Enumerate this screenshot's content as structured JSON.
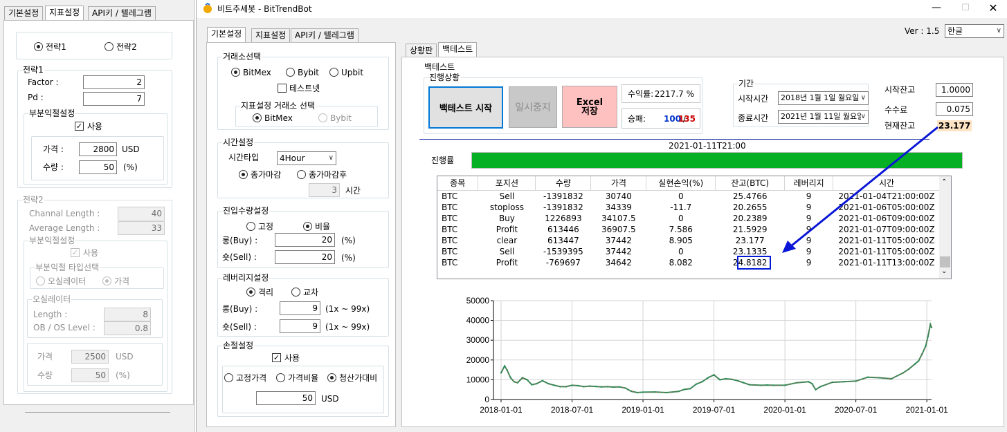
{
  "left_window": {
    "tabs": [
      "기본설정",
      "지표설정",
      "API키 / 텔레그램"
    ],
    "strategy_radios": [
      "전략1",
      "전략2"
    ],
    "strategy1": {
      "title": "전략1",
      "factor_label": "Factor :",
      "factor_value": "2",
      "pd_label": "Pd :",
      "pd_value": "7",
      "partial_title": "부분익절설정",
      "use_label": "사용",
      "price_label": "가격 :",
      "price_value": "2800",
      "price_unit": "USD",
      "qty_label": "수량 :",
      "qty_value": "50",
      "qty_unit": "(%)"
    },
    "strategy2": {
      "title": "전략2",
      "channal_label": "Channal Length :",
      "channal_value": "40",
      "average_label": "Average Length :",
      "average_value": "33",
      "partial_title": "부분익절설정",
      "use_label": "사용",
      "type_title": "부분익절 타입선택",
      "type_options": [
        "오실레이터",
        "가격"
      ],
      "osc_title": "오실레이터",
      "length_label": "Length :",
      "length_value": "8",
      "obos_label": "OB / OS Level :",
      "obos_value": "0.8",
      "price_label": "가격",
      "price_value": "2500",
      "price_unit": "USD",
      "qty_label": "수량",
      "qty_value": "50",
      "qty_unit": "(%)"
    }
  },
  "main_window": {
    "title": "비트추세봇 - BitTrendBot",
    "version_label": "Ver : 1.5",
    "language": "한글",
    "tabs": [
      "기본설정",
      "지표설정",
      "API키 / 텔레그램"
    ],
    "exchange": {
      "title": "거래소선택",
      "options": [
        "BitMex",
        "Bybit",
        "Upbit"
      ],
      "testnet_label": "테스트넷",
      "indicator_title": "지표설정 거래소 선택",
      "indicator_options": [
        "BitMex",
        "Bybit"
      ]
    },
    "time": {
      "title": "시간설정",
      "type_label": "시간타입",
      "type_value": "4Hour",
      "options": [
        "종가마감",
        "종가마감후"
      ],
      "hours_value": "3",
      "hours_unit": "시간"
    },
    "entry": {
      "title": "진입수량설정",
      "options": [
        "고정",
        "비율"
      ],
      "long_label": "롱(Buy) :",
      "long_value": "20",
      "long_unit": "(%)",
      "short_label": "숏(Sell) :",
      "short_value": "20",
      "short_unit": "(%)"
    },
    "leverage": {
      "title": "레버리지설정",
      "options": [
        "격리",
        "교차"
      ],
      "long_label": "롱(Buy) :",
      "long_value": "9",
      "long_range": "(1x ~ 99x)",
      "short_label": "숏(Sell) :",
      "short_value": "9",
      "short_range": "(1x ~ 99x)"
    },
    "stoploss": {
      "title": "손절설정",
      "use_label": "사용",
      "options": [
        "고정가격",
        "가격비율",
        "청산가대비"
      ],
      "value": "50",
      "unit": "USD"
    },
    "right_tabs": [
      "상황판",
      "백테스트"
    ],
    "backtest": {
      "title": "백테스트",
      "progress_title": "진행상황",
      "start_button": "백테스트 시작",
      "pause_button": "일시중지",
      "excel_button_line1": "Excel",
      "excel_button_line2": "저장",
      "profit_label": "수익률:",
      "profit_value": "2217.7 %",
      "winloss_label": "승패:",
      "wins": "100",
      "sep": "/",
      "losses": "135",
      "period_title": "기간",
      "start_label": "시작시간",
      "start_value": "2018년   1월   1일 월요일",
      "end_label": "종료시간",
      "end_value": "2021년   1월 11일 월요일",
      "start_balance_label": "시작잔고",
      "start_balance_value": "1.0000",
      "fee_label": "수수료",
      "fee_value": "0.075",
      "current_balance_label": "현재잔고",
      "current_balance_value": "23.177",
      "current_time": "2021-01-11T21:00",
      "progress_label": "진행률",
      "progress_fraction": 1.0,
      "table": {
        "headers": [
          "종목",
          "포지션",
          "수량",
          "가격",
          "실현손익(%)",
          "잔고(BTC)",
          "레버리지",
          "시간"
        ],
        "rows": [
          [
            "BTC",
            "Sell",
            "-1391832",
            "30740",
            "0",
            "25.4766",
            "9",
            "2021-01-04T21:00:00Z"
          ],
          [
            "BTC",
            "stoploss",
            "-1391832",
            "34339",
            "-11.7",
            "20.2655",
            "9",
            "2021-01-06T05:00:00Z"
          ],
          [
            "BTC",
            "Buy",
            "1226893",
            "34107.5",
            "0",
            "20.2389",
            "9",
            "2021-01-06T09:00:00Z"
          ],
          [
            "BTC",
            "Profit",
            "613446",
            "36907.5",
            "7.586",
            "21.5929",
            "9",
            "2021-01-07T09:00:00Z"
          ],
          [
            "BTC",
            "clear",
            "613447",
            "37442",
            "8.905",
            "23.177",
            "9",
            "2021-01-11T05:00:00Z"
          ],
          [
            "BTC",
            "Sell",
            "-1539395",
            "37442",
            "0",
            "23.1335",
            "9",
            "2021-01-11T05:00:00Z"
          ],
          [
            "BTC",
            "Profit",
            "-769697",
            "34642",
            "8.082",
            "24.8182",
            "9",
            "2021-01-11T13:00:00Z"
          ]
        ]
      }
    }
  },
  "chart_data": {
    "type": "line",
    "x_ticks": [
      "2018-01-01",
      "2018-07-01",
      "2019-01-01",
      "2019-07-01",
      "2020-01-01",
      "2020-07-01",
      "2021-01-01"
    ],
    "y_ticks": [
      "0",
      "10000",
      "20000",
      "30000",
      "40000",
      "50000"
    ],
    "ylim": [
      0,
      50000
    ],
    "xlim_months": [
      0,
      36.4
    ],
    "series": [
      {
        "x_months": [
          0,
          0.3,
          0.5,
          0.8,
          1.1,
          1.4,
          1.8,
          2.2,
          2.6,
          3.0,
          3.5,
          4.0,
          4.5,
          5.0,
          5.5,
          6.0,
          6.5,
          7.0,
          7.5,
          8.0,
          8.5,
          9.0,
          9.5,
          10.0,
          10.5,
          11.0,
          11.5,
          12.0,
          13.0,
          14.0,
          15.0,
          15.5,
          16.0,
          16.5,
          17.0,
          17.5,
          18.0,
          18.5,
          19.0,
          19.5,
          20.0,
          20.5,
          21.0,
          22.0,
          22.5,
          23.0,
          24.0,
          25.0,
          26.0,
          26.3,
          26.6,
          27.0,
          28.0,
          29.0,
          30.0,
          31.0,
          32.0,
          33.0,
          34.0,
          34.5,
          35.0,
          35.3,
          35.6,
          35.9,
          36.1,
          36.2,
          36.3,
          36.4
        ],
        "values": [
          13500,
          17000,
          15000,
          11000,
          9000,
          8500,
          11000,
          10000,
          7500,
          8000,
          9500,
          8000,
          7200,
          6500,
          6500,
          7200,
          7000,
          6500,
          6800,
          6600,
          6400,
          6500,
          6300,
          6400,
          5800,
          4200,
          3500,
          3700,
          3800,
          3500,
          4100,
          5100,
          5500,
          7800,
          9000,
          11000,
          12500,
          10000,
          10500,
          10200,
          9500,
          8500,
          7500,
          7200,
          7300,
          7200,
          7200,
          8500,
          9000,
          8000,
          5000,
          6500,
          8700,
          9000,
          9300,
          11300,
          11000,
          10500,
          13500,
          15500,
          18000,
          19500,
          23000,
          27000,
          32000,
          35000,
          38000,
          36500
        ],
        "color": "#2e8b57"
      }
    ]
  }
}
